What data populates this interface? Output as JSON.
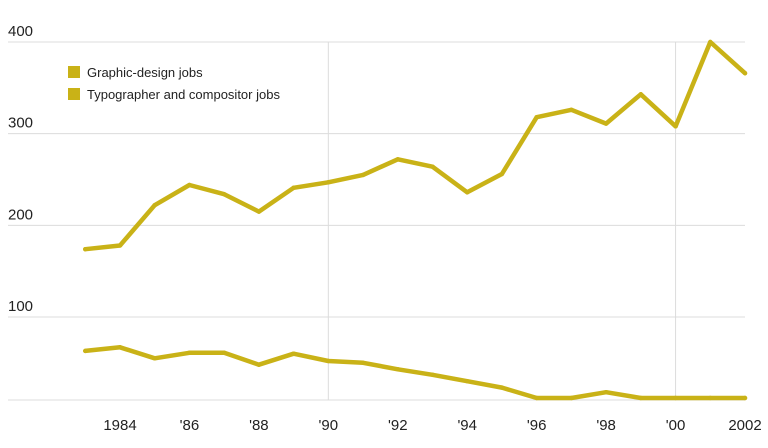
{
  "chart_data": {
    "type": "line",
    "x": [
      1983,
      1984,
      1985,
      1986,
      1987,
      1988,
      1989,
      1990,
      1991,
      1992,
      1993,
      1994,
      1995,
      1996,
      1997,
      1998,
      1999,
      2000,
      2001,
      2002
    ],
    "x_ticks": [
      {
        "value": 1984,
        "label": "1984"
      },
      {
        "value": 1986,
        "label": "'86"
      },
      {
        "value": 1988,
        "label": "'88"
      },
      {
        "value": 1990,
        "label": "'90"
      },
      {
        "value": 1992,
        "label": "'92"
      },
      {
        "value": 1994,
        "label": "'94"
      },
      {
        "value": 1996,
        "label": "'96"
      },
      {
        "value": 1998,
        "label": "'98"
      },
      {
        "value": 2000,
        "label": "'00"
      },
      {
        "value": 2002,
        "label": "2002"
      }
    ],
    "y_ticks": [
      100,
      200,
      300,
      400
    ],
    "xlim": [
      1982.2,
      2002.2
    ],
    "ylim": [
      0,
      400
    ],
    "grid": true,
    "legend": "top-left",
    "series": [
      {
        "name": "Graphic-design jobs",
        "color": "#c9b217",
        "values": [
          174,
          178,
          222,
          244,
          234,
          215,
          241,
          247,
          255,
          272,
          264,
          236,
          256,
          318,
          326,
          311,
          343,
          308,
          400,
          366
        ]
      },
      {
        "name": "Typographer and compositor jobs",
        "color": "#c9b217",
        "values": [
          63,
          67,
          55,
          61,
          61,
          48,
          60,
          52,
          50,
          43,
          37,
          30,
          23,
          -8,
          -5,
          18,
          1,
          3,
          -1,
          -7
        ]
      }
    ]
  }
}
